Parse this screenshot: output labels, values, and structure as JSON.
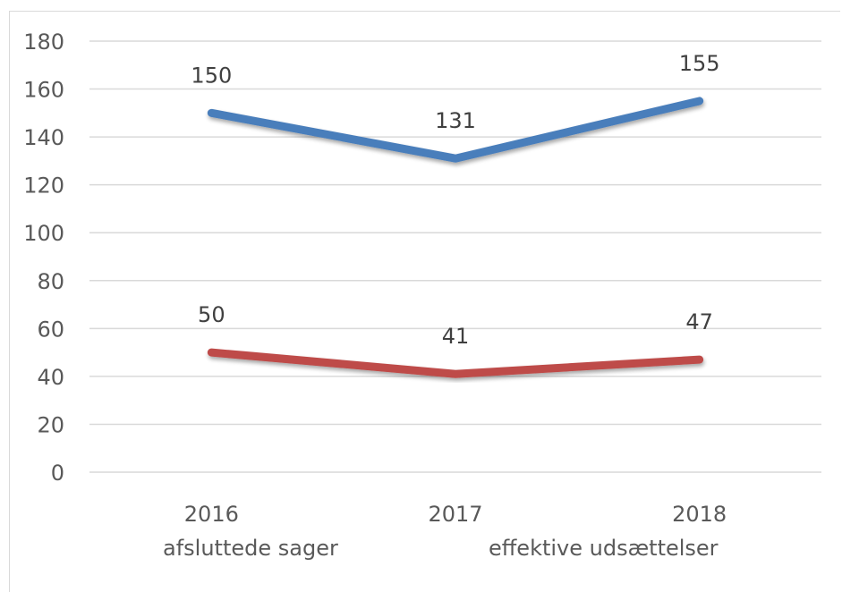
{
  "chart_data": {
    "type": "line",
    "categories": [
      "2016",
      "2017",
      "2018"
    ],
    "series": [
      {
        "name": "afsluttede sager",
        "values": [
          150,
          131,
          155
        ],
        "color": "#4a7ebb"
      },
      {
        "name": "effektive udsættelser",
        "values": [
          50,
          41,
          47
        ],
        "color": "#be4b48"
      }
    ],
    "ylim": [
      0,
      180
    ],
    "yticks": [
      "0",
      "20",
      "40",
      "60",
      "80",
      "100",
      "120",
      "140",
      "160",
      "180"
    ],
    "grid": true,
    "legend_position": "bottom",
    "data_labels": true
  }
}
